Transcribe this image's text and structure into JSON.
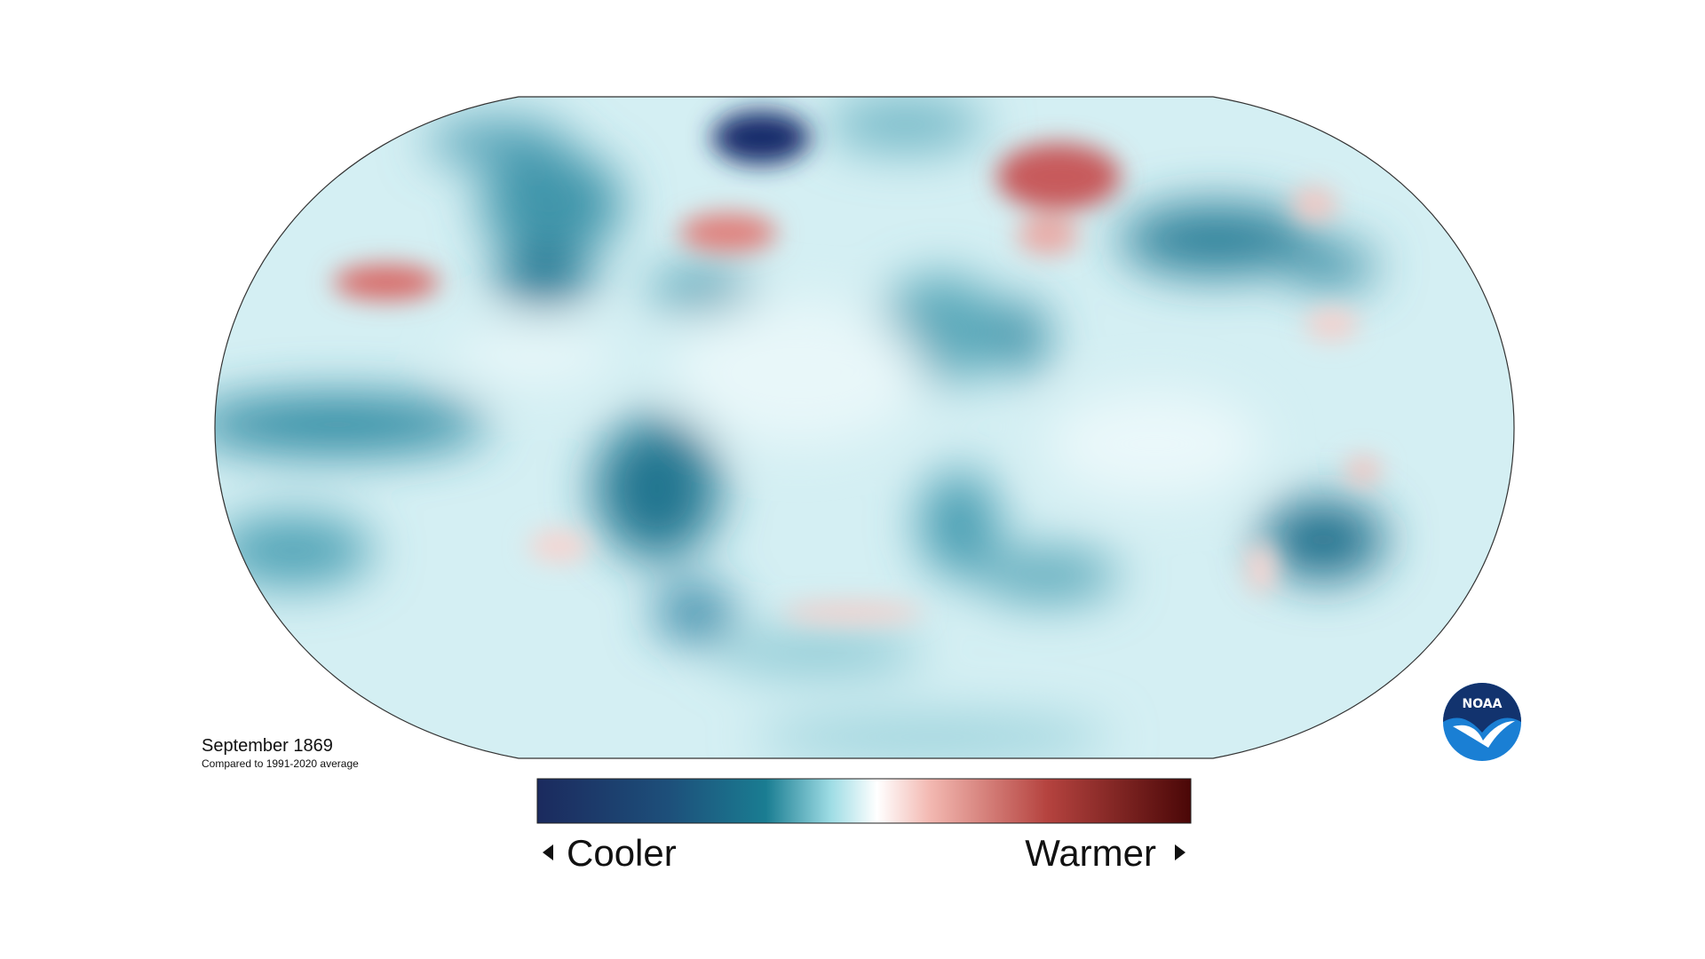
{
  "map": {
    "date": "September 1869",
    "baseline": "Compared to 1991-2020 average"
  },
  "legend": {
    "low": "Cooler",
    "high": "Warmer"
  },
  "logo": "NOAA"
}
